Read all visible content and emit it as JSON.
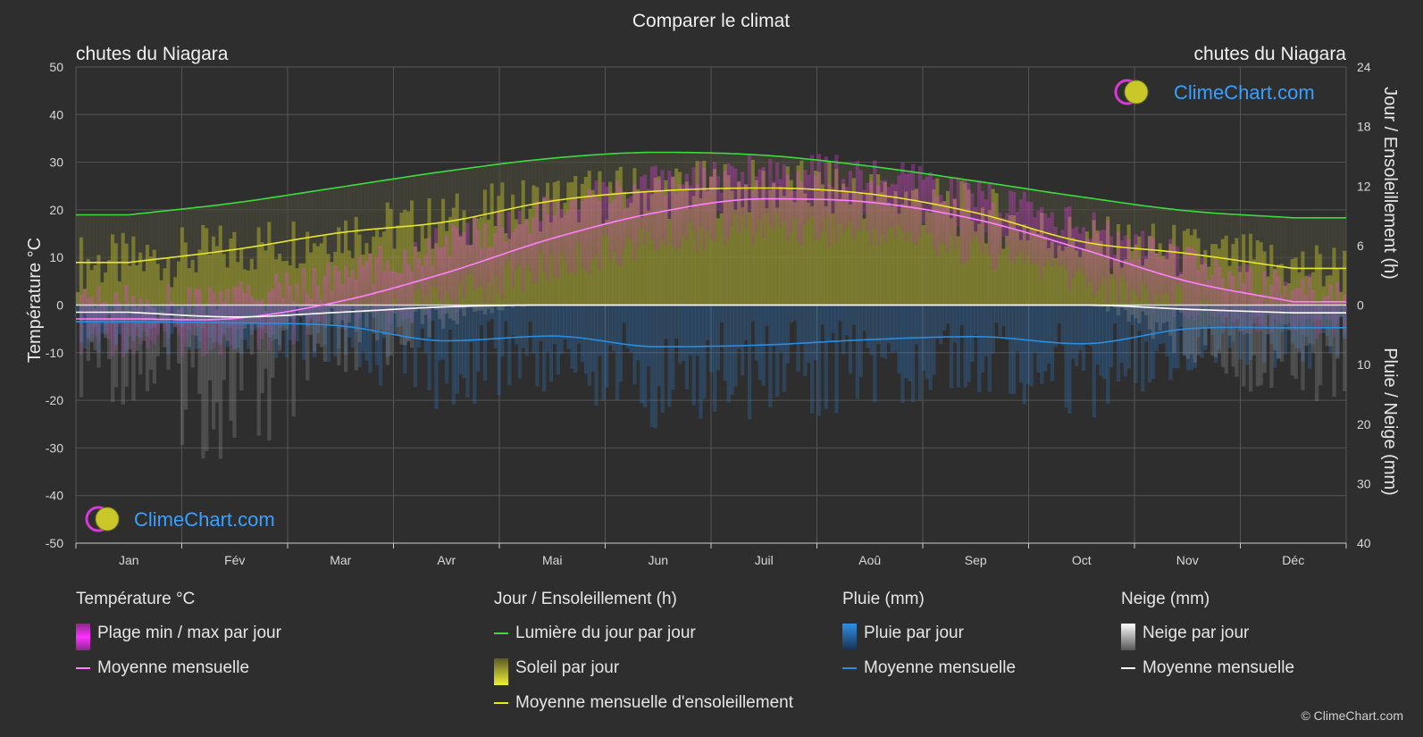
{
  "title": "Comparer le climat",
  "location_left": "chutes du Niagara",
  "location_right": "chutes du Niagara",
  "brand": "ClimeChart.com",
  "copyright": "© ClimeChart.com",
  "colors": {
    "background": "#2e2e2e",
    "daylight": "#3ddc3d",
    "sunshine_avg": "#e6e62a",
    "sunshine_fill": "#a7a72c",
    "temp_range": "#e03ae0",
    "temp_avg": "#ff80ff",
    "rain": "#2f7fd0",
    "rain_avg": "#2a8ee0",
    "snow": "#9a9a9a",
    "snow_avg": "#ffffff",
    "brand_text": "#3aa0ff"
  },
  "chart_data": {
    "type": "line",
    "months": [
      "Jan",
      "Fév",
      "Mar",
      "Avr",
      "Mai",
      "Jun",
      "Juil",
      "Aoû",
      "Sep",
      "Oct",
      "Nov",
      "Déc"
    ],
    "axes": {
      "left": {
        "label": "Température °C",
        "min": -50,
        "max": 50,
        "ticks": [
          50,
          40,
          30,
          20,
          10,
          0,
          -10,
          -20,
          -30,
          -40,
          -50
        ]
      },
      "right_top": {
        "label": "Jour / Ensoleillement (h)",
        "min": 0,
        "max": 24,
        "ticks": [
          24,
          18,
          12,
          6,
          0
        ]
      },
      "right_bottom": {
        "label": "Pluie / Neige (mm)",
        "min": 0,
        "max": 40,
        "ticks": [
          0,
          10,
          20,
          30,
          40
        ]
      }
    },
    "grid": true,
    "series": {
      "daylight_h": [
        9.1,
        10.3,
        11.9,
        13.5,
        14.8,
        15.4,
        15.1,
        14.0,
        12.5,
        10.9,
        9.5,
        8.8
      ],
      "sunshine_avg_h": [
        4.3,
        5.6,
        7.3,
        8.4,
        10.5,
        11.5,
        11.8,
        11.2,
        9.3,
        6.4,
        5.2,
        3.7
      ],
      "temp_avg_c": [
        -2.9,
        -2.8,
        0.8,
        6.8,
        14.0,
        19.5,
        22.3,
        21.6,
        18.0,
        11.8,
        5.0,
        0.7
      ],
      "temp_max_c": [
        0.5,
        1.5,
        6.0,
        13.0,
        20.0,
        25.5,
        28.0,
        27.0,
        23.0,
        16.5,
        9.0,
        3.0
      ],
      "temp_min_c": [
        -7.0,
        -7.0,
        -4.0,
        1.5,
        8.0,
        13.5,
        16.5,
        15.5,
        12.0,
        5.5,
        0.5,
        -4.0
      ],
      "rain_avg_mm": [
        2.8,
        3.0,
        3.5,
        6.0,
        5.2,
        7.0,
        6.7,
        5.8,
        5.3,
        6.5,
        4.0,
        3.8
      ],
      "snow_avg_mm": [
        1.2,
        2.0,
        1.2,
        0.3,
        0.0,
        0.0,
        0.0,
        0.0,
        0.0,
        0.0,
        0.7,
        1.3
      ]
    }
  },
  "legend": {
    "temperature": {
      "title": "Température °C",
      "items": [
        "Plage min / max par jour",
        "Moyenne mensuelle"
      ]
    },
    "sun": {
      "title": "Jour / Ensoleillement (h)",
      "items": [
        "Lumière du jour par jour",
        "Soleil par jour",
        "Moyenne mensuelle d'ensoleillement"
      ]
    },
    "rain": {
      "title": "Pluie (mm)",
      "items": [
        "Pluie par jour",
        "Moyenne mensuelle"
      ]
    },
    "snow": {
      "title": "Neige (mm)",
      "items": [
        "Neige par jour",
        "Moyenne mensuelle"
      ]
    }
  }
}
